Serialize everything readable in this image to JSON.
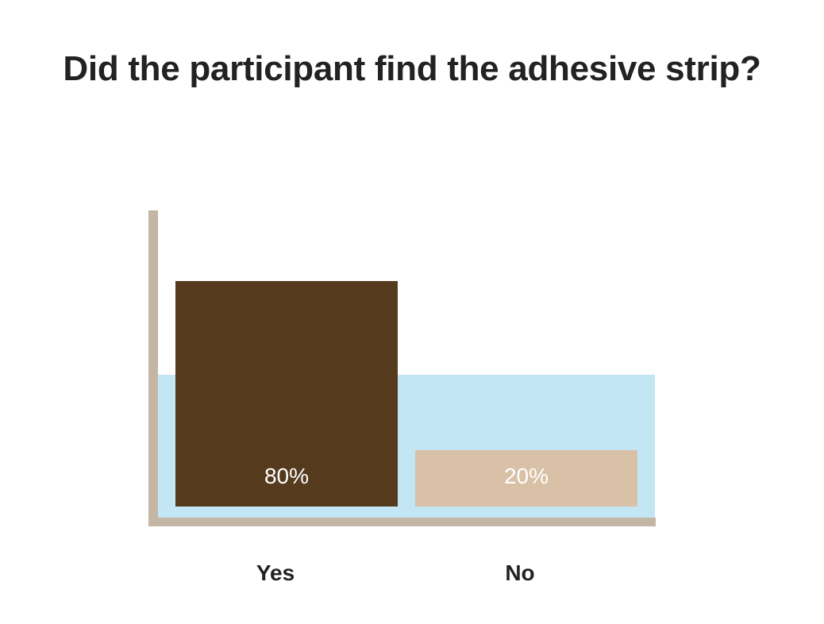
{
  "chart_data": {
    "type": "bar",
    "title": "Did the participant find the adhesive strip?",
    "categories": [
      "Yes",
      "No"
    ],
    "values": [
      80,
      20
    ],
    "value_labels": [
      "80%",
      "20%"
    ],
    "ylim": [
      0,
      100
    ],
    "grid": false,
    "legend": "none",
    "colors": {
      "bars": [
        "#553a1e",
        "#d8c1a6"
      ],
      "value_label_text": [
        "#ffffff",
        "#ffffff"
      ],
      "axis": "#c4b5a5",
      "background_panel": "#c3e6f4"
    }
  }
}
